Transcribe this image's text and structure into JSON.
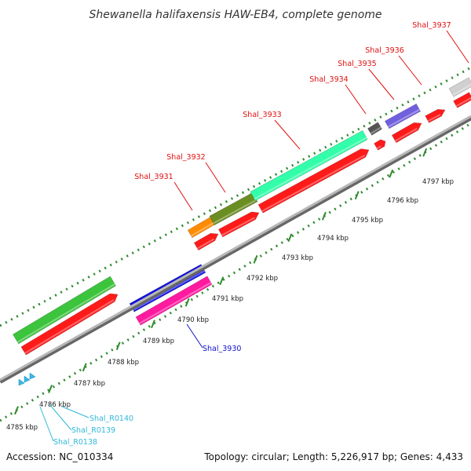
{
  "title": "Shewanella halifaxensis HAW-EB4, complete genome",
  "footer": {
    "accession": "Accession: NC_010334",
    "summary": "Topology: circular; Length: 5,226,917 bp; Genes: 4,433"
  },
  "colors": {
    "backbone": "#9a9a9a",
    "tick": "#2e8b2e",
    "red_label": "#e01010",
    "blue_label": "#1010d0",
    "cyan_label": "#30b8d8"
  },
  "ticks": [
    {
      "label": "4785 kbp"
    },
    {
      "label": "4786 kbp"
    },
    {
      "label": "4787 kbp"
    },
    {
      "label": "4788 kbp"
    },
    {
      "label": "4789 kbp"
    },
    {
      "label": "4790 kbp"
    },
    {
      "label": "4791 kbp"
    },
    {
      "label": "4792 kbp"
    },
    {
      "label": "4793 kbp"
    },
    {
      "label": "4794 kbp"
    },
    {
      "label": "4795 kbp"
    },
    {
      "label": "4796 kbp"
    },
    {
      "label": "4797 kbp"
    }
  ],
  "gene_labels": [
    {
      "name": "Shal_3931",
      "color": "red"
    },
    {
      "name": "Shal_3932",
      "color": "red"
    },
    {
      "name": "Shal_3933",
      "color": "red"
    },
    {
      "name": "Shal_3934",
      "color": "red"
    },
    {
      "name": "Shal_3935",
      "color": "red"
    },
    {
      "name": "Shal_3936",
      "color": "red"
    },
    {
      "name": "Shal_3937",
      "color": "red"
    },
    {
      "name": "Shal_3930",
      "color": "blue"
    },
    {
      "name": "Shal_R0140",
      "color": "cyan"
    },
    {
      "name": "Shal_R0139",
      "color": "cyan"
    },
    {
      "name": "Shal_R0138",
      "color": "cyan"
    }
  ]
}
